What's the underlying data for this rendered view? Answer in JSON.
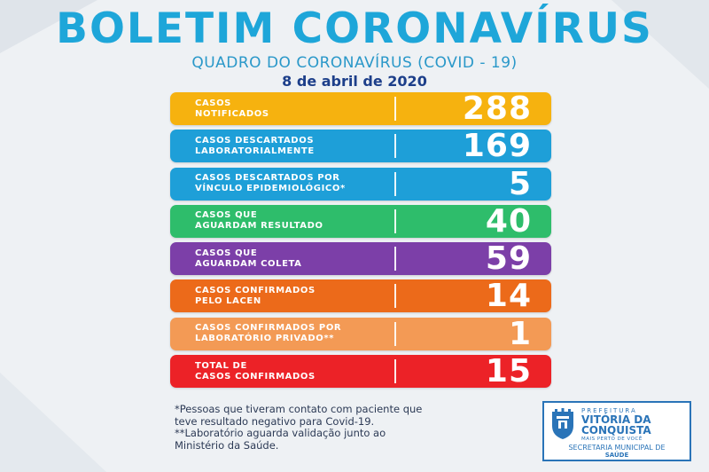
{
  "header": {
    "title": "BOLETIM CORONAVÍRUS",
    "subtitle": "QUADRO DO CORONAVÍRUS (COVID - 19)",
    "date": "8 de abril de 2020"
  },
  "rows": [
    {
      "label": "CASOS\nNOTIFICADOS",
      "value": "288",
      "color": "#f6b20f"
    },
    {
      "label": "CASOS DESCARTADOS\nLABORATORIALMENTE",
      "value": "169",
      "color": "#1e9fd8"
    },
    {
      "label": "CASOS DESCARTADOS POR\nVÍNCULO EPIDEMIOLÓGICO*",
      "value": "5",
      "color": "#1e9fd8"
    },
    {
      "label": "CASOS QUE\nAGUARDAM RESULTADO",
      "value": "40",
      "color": "#2ebd6b"
    },
    {
      "label": "CASOS QUE\nAGUARDAM COLETA",
      "value": "59",
      "color": "#7c3fa8"
    },
    {
      "label": "CASOS CONFIRMADOS\nPELO LACEN",
      "value": "14",
      "color": "#ec6a1a"
    },
    {
      "label": "CASOS CONFIRMADOS POR\nLABORATÓRIO PRIVADO**",
      "value": "1",
      "color": "#f39a55"
    },
    {
      "label": "TOTAL DE\nCASOS CONFIRMADOS",
      "value": "15",
      "color": "#ec2227"
    }
  ],
  "notes": {
    "note1": "*Pessoas que tiveram contato com paciente que\nteve resultado negativo para Covid-19.",
    "note2": "**Laboratório aguarda validação junto ao\nMinistério da Saúde."
  },
  "logo": {
    "prefeitura": "PREFEITURA",
    "city_line1": "VITÓRIA DA",
    "city_line2": "CONQUISTA",
    "tagline": "MAIS PERTO DE VOCÊ",
    "secretaria": "SECRETARIA MUNICIPAL DE",
    "saude": "SAÚDE"
  }
}
